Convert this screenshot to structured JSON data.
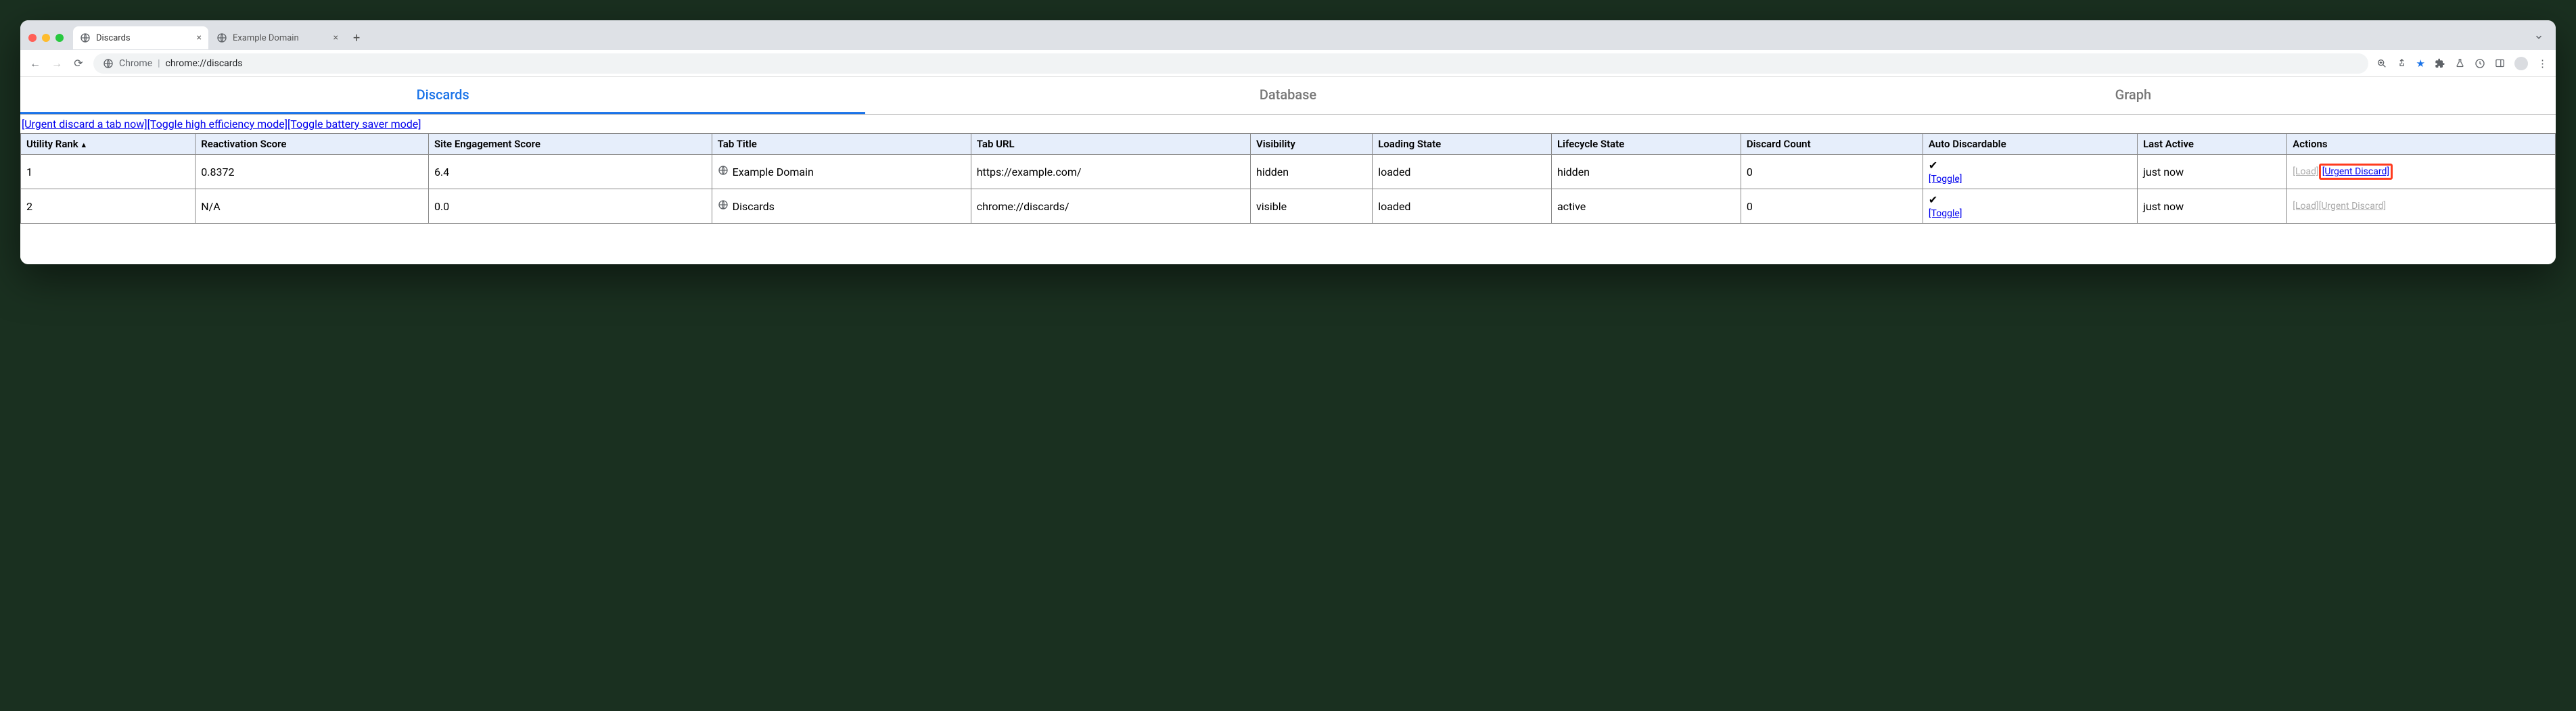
{
  "browser_tabs": [
    {
      "title": "Discards",
      "active": true
    },
    {
      "title": "Example Domain",
      "active": false
    }
  ],
  "omnibox": {
    "host": "Chrome",
    "path": "chrome://discards"
  },
  "subtabs": {
    "items": [
      "Discards",
      "Database",
      "Graph"
    ],
    "active_index": 0
  },
  "top_actions": [
    "[Urgent discard a tab now]",
    "[Toggle high efficiency mode]",
    "[Toggle battery saver mode]"
  ],
  "table": {
    "columns": [
      "Utility Rank",
      "Reactivation Score",
      "Site Engagement Score",
      "Tab Title",
      "Tab URL",
      "Visibility",
      "Loading State",
      "Lifecycle State",
      "Discard Count",
      "Auto Discardable",
      "Last Active",
      "Actions"
    ],
    "sort_column_index": 0,
    "toggle_label": "[Toggle]",
    "rows": [
      {
        "rank": "1",
        "reactivation": "0.8372",
        "engagement": "6.4",
        "title": "Example Domain",
        "url": "https://example.com/",
        "visibility": "hidden",
        "loading": "loaded",
        "lifecycle": "hidden",
        "discard_count": "0",
        "auto_discardable": "✔",
        "last_active": "just now",
        "actions": {
          "load": "[Load]",
          "load_enabled": false,
          "urgent": "[Urgent Discard]",
          "urgent_enabled": true,
          "highlight": true
        }
      },
      {
        "rank": "2",
        "reactivation": "N/A",
        "engagement": "0.0",
        "title": "Discards",
        "url": "chrome://discards/",
        "visibility": "visible",
        "loading": "loaded",
        "lifecycle": "active",
        "discard_count": "0",
        "auto_discardable": "✔",
        "last_active": "just now",
        "actions": {
          "load": "[Load]",
          "load_enabled": false,
          "urgent": "[Urgent Discard]",
          "urgent_enabled": false,
          "highlight": false
        }
      }
    ]
  },
  "colors": {
    "header_bg": "#e6eefb",
    "link": "#0000ee",
    "active_tab": "#1a73e8",
    "highlight_border": "#ff3b1f"
  }
}
